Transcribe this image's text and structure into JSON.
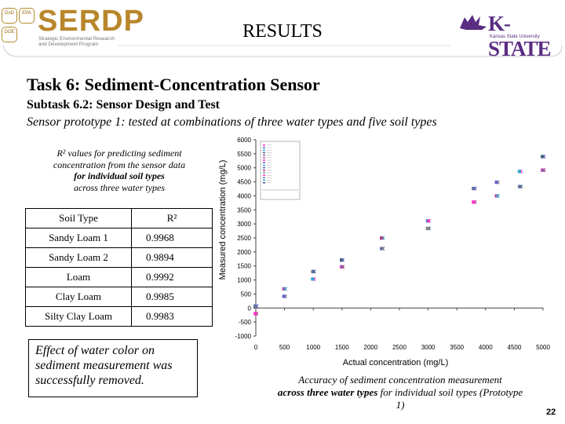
{
  "header": {
    "title": "RESULTS",
    "left_logo_text": "SERDP",
    "left_logo_sub": "Strategic Environmental Research and Development Program",
    "small_logos": [
      "DoD",
      "EPA",
      "DOE"
    ],
    "right_logo_text": "K-STATE",
    "right_logo_sub": "Kansas State University"
  },
  "headings": {
    "task": "Task 6:  Sediment-Concentration Sensor",
    "subtask": "Subtask 6.2:  Sensor Design and Test",
    "prototype": "Sensor prototype 1: tested at combinations of three water types and five soil types"
  },
  "r2_intro": {
    "line1": "R² values  for predicting sediment",
    "line2": "concentration from the sensor data",
    "line3": "for individual soil types",
    "line4": "across three water types"
  },
  "r2_table": {
    "headers": [
      "Soil Type",
      "R²"
    ],
    "rows": [
      [
        "Sandy Loam 1",
        "0.9968"
      ],
      [
        "Sandy Loam 2",
        "0.9894"
      ],
      [
        "Loam",
        "0.9992"
      ],
      [
        "Clay Loam",
        "0.9985"
      ],
      [
        "Silty Clay Loam",
        "0.9983"
      ]
    ]
  },
  "conclusion": "Effect of water color on sediment measurement was successfully removed.",
  "caption": {
    "part1": "Accuracy of sediment concentration measurement",
    "part2": "across three water types",
    "part3": " for individual soil types (Prototype 1)"
  },
  "slide_number": "22",
  "chart_data": {
    "type": "scatter",
    "xlabel": "Actual concentration (mg/L)",
    "ylabel": "Measured concentration (mg/L)",
    "xlim": [
      0,
      5000
    ],
    "ylim": [
      -1000,
      6000
    ],
    "xticks": [
      0,
      500,
      1000,
      1500,
      2000,
      2500,
      3000,
      3500,
      4000,
      4500,
      5000
    ],
    "yticks": [
      -1000,
      -500,
      0,
      500,
      1000,
      1500,
      2000,
      2500,
      3000,
      3500,
      4000,
      4500,
      5000,
      5500,
      6000
    ],
    "grid": false,
    "legend": "top-left inset",
    "colors": [
      "#ff33cc",
      "#6666cc",
      "#33aacc",
      "#446688",
      "#aa4488",
      "#888888"
    ],
    "groups": [
      {
        "x": 0,
        "y_min": -200,
        "y_max": 300
      },
      {
        "x": 500,
        "y_min": 300,
        "y_max": 800
      },
      {
        "x": 1000,
        "y_min": 800,
        "y_max": 1300
      },
      {
        "x": 1500,
        "y_min": 1400,
        "y_max": 1850
      },
      {
        "x": 2200,
        "y_min": 1850,
        "y_max": 2550
      },
      {
        "x": 3000,
        "y_min": 2800,
        "y_max": 3300
      },
      {
        "x": 3800,
        "y_min": 3500,
        "y_max": 4400
      },
      {
        "x": 4200,
        "y_min": 4000,
        "y_max": 4900
      },
      {
        "x": 4600,
        "y_min": 4100,
        "y_max": 5100
      },
      {
        "x": 5000,
        "y_min": 4500,
        "y_max": 5400
      }
    ]
  }
}
